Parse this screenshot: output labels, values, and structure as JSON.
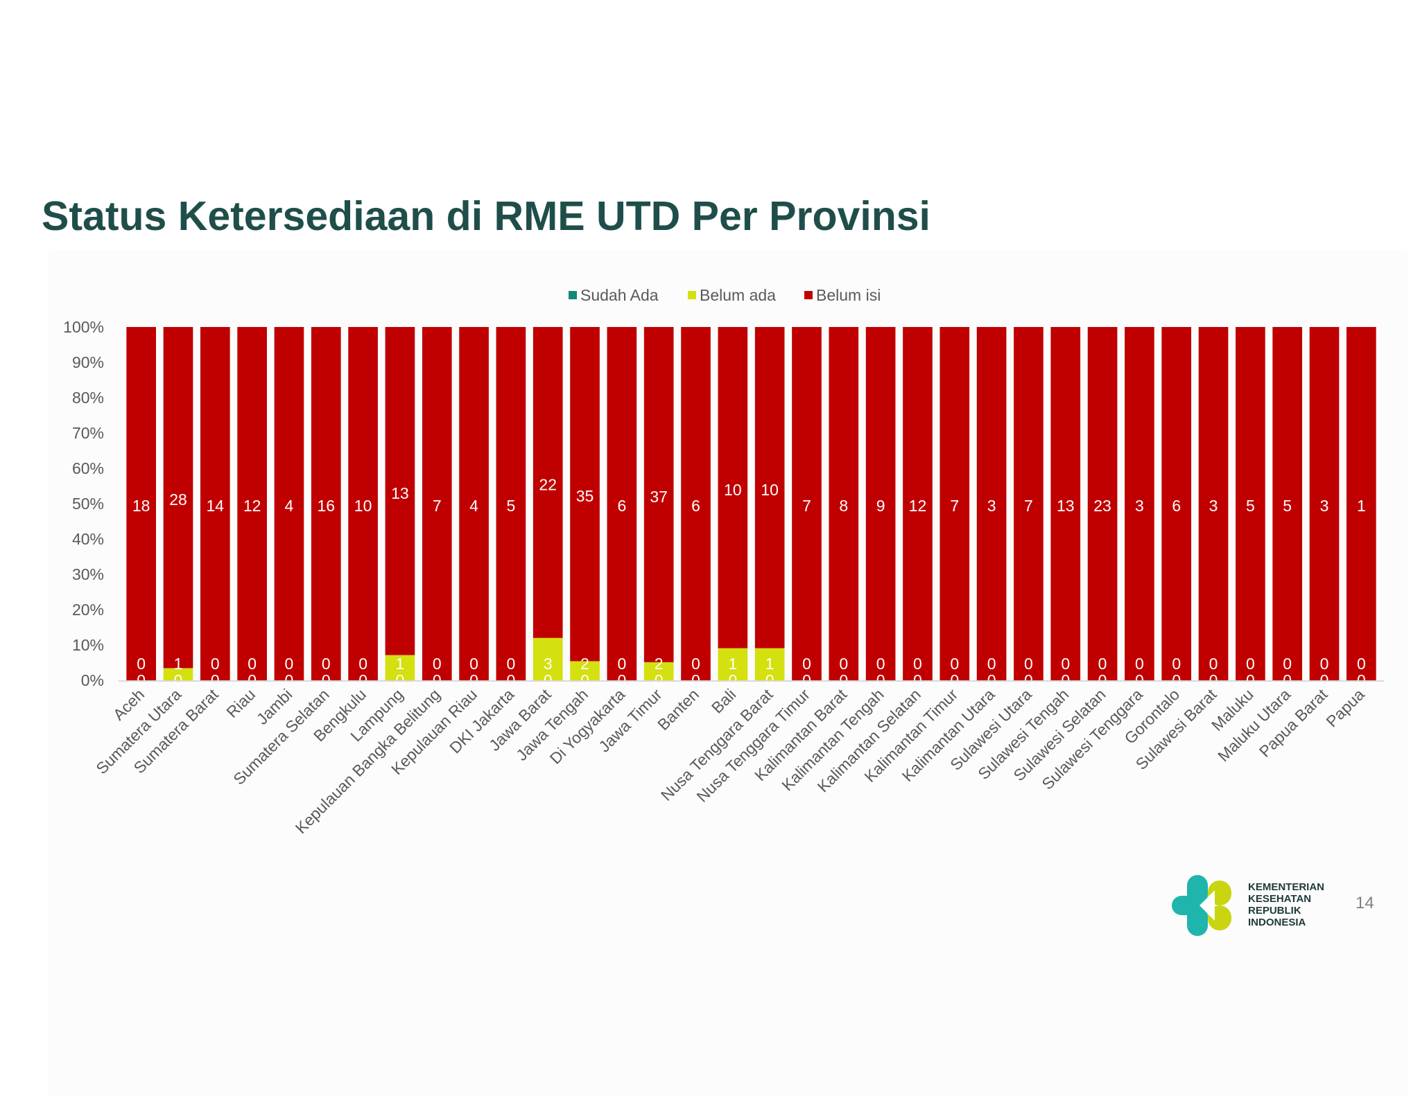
{
  "slide": {
    "title": "Status Ketersediaan di RME UTD Per Provinsi",
    "page_number": "14",
    "logo_lines": [
      "KEMENTERIAN",
      "KESEHATAN",
      "REPUBLIK",
      "INDONESIA"
    ]
  },
  "colors": {
    "sudah_ada": "#12877a",
    "belum_ada": "#d4e00f",
    "belum_isi": "#c00000",
    "axis_text": "#595959",
    "title": "#1f4e4a"
  },
  "chart_data": {
    "type": "bar",
    "stacked": "percent",
    "title": "",
    "xlabel": "",
    "ylabel": "",
    "ylim": [
      0,
      100
    ],
    "yticks": [
      "0%",
      "10%",
      "20%",
      "30%",
      "40%",
      "50%",
      "60%",
      "70%",
      "80%",
      "90%",
      "100%"
    ],
    "legend_position": "top",
    "grid": false,
    "categories": [
      "Aceh",
      "Sumatera Utara",
      "Sumatera Barat",
      "Riau",
      "Jambi",
      "Sumatera Selatan",
      "Bengkulu",
      "Lampung",
      "Kepulauan Bangka Belitung",
      "Kepulauan Riau",
      "DKI Jakarta",
      "Jawa Barat",
      "Jawa Tengah",
      "Di Yogyakarta",
      "Jawa Timur",
      "Banten",
      "Bali",
      "Nusa Tenggara Barat",
      "Nusa Tenggara Timur",
      "Kalimantan Barat",
      "Kalimantan Tengah",
      "Kalimantan Selatan",
      "Kalimantan Timur",
      "Kalimantan Utara",
      "Sulawesi Utara",
      "Sulawesi Tengah",
      "Sulawesi Selatan",
      "Sulawesi Tenggara",
      "Gorontalo",
      "Sulawesi Barat",
      "Maluku",
      "Maluku Utara",
      "Papua Barat",
      "Papua"
    ],
    "series": [
      {
        "name": "Sudah Ada",
        "color": "#12877a",
        "values": [
          0,
          0,
          0,
          0,
          0,
          0,
          0,
          0,
          0,
          0,
          0,
          0,
          0,
          0,
          0,
          0,
          0,
          0,
          0,
          0,
          0,
          0,
          0,
          0,
          0,
          0,
          0,
          0,
          0,
          0,
          0,
          0,
          0,
          0
        ]
      },
      {
        "name": "Belum ada",
        "color": "#d4e00f",
        "values": [
          0,
          1,
          0,
          0,
          0,
          0,
          0,
          1,
          0,
          0,
          0,
          3,
          2,
          0,
          2,
          0,
          1,
          1,
          0,
          0,
          0,
          0,
          0,
          0,
          0,
          0,
          0,
          0,
          0,
          0,
          0,
          0,
          0,
          0
        ]
      },
      {
        "name": "Belum isi",
        "color": "#c00000",
        "values": [
          18,
          28,
          14,
          12,
          4,
          16,
          10,
          13,
          7,
          4,
          5,
          22,
          35,
          6,
          37,
          6,
          10,
          10,
          7,
          8,
          9,
          12,
          7,
          3,
          7,
          13,
          23,
          3,
          6,
          3,
          5,
          5,
          3,
          1
        ]
      }
    ]
  }
}
